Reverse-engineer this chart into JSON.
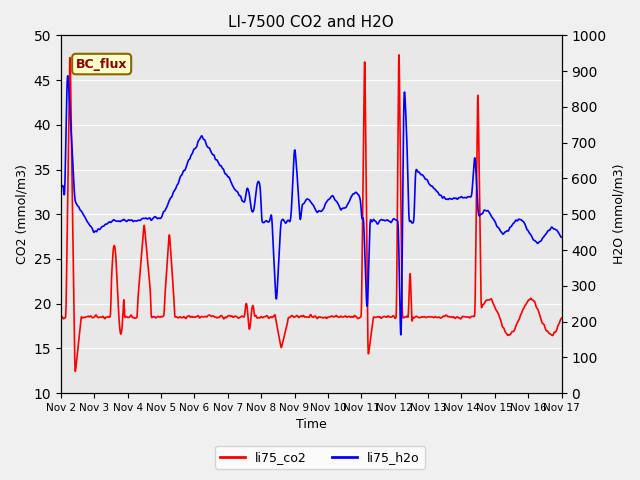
{
  "title": "LI-7500 CO2 and H2O",
  "xlabel": "Time",
  "ylabel_left": "CO2 (mmol/m3)",
  "ylabel_right": "H2O (mmol/m3)",
  "ylim_left": [
    10,
    50
  ],
  "ylim_right": [
    0,
    1000
  ],
  "yticks_left": [
    10,
    15,
    20,
    25,
    30,
    35,
    40,
    45,
    50
  ],
  "yticks_right": [
    0,
    100,
    200,
    300,
    400,
    500,
    600,
    700,
    800,
    900,
    1000
  ],
  "xtick_labels": [
    "Nov 2",
    "Nov 3",
    "Nov 4",
    "Nov 5",
    "Nov 6",
    "Nov 7",
    "Nov 8",
    "Nov 9",
    "Nov 10",
    "Nov 11",
    "Nov 12",
    "Nov 13",
    "Nov 14",
    "Nov 15",
    "Nov 16",
    "Nov 17"
  ],
  "annotation_text": "BC_flux",
  "co2_color": "#ff0000",
  "h2o_color": "#0000ff",
  "legend_co2": "li75_co2",
  "legend_h2o": "li75_h2o",
  "bg_color": "#e8e8e8",
  "linewidth": 1.2,
  "title_fontsize": 11
}
